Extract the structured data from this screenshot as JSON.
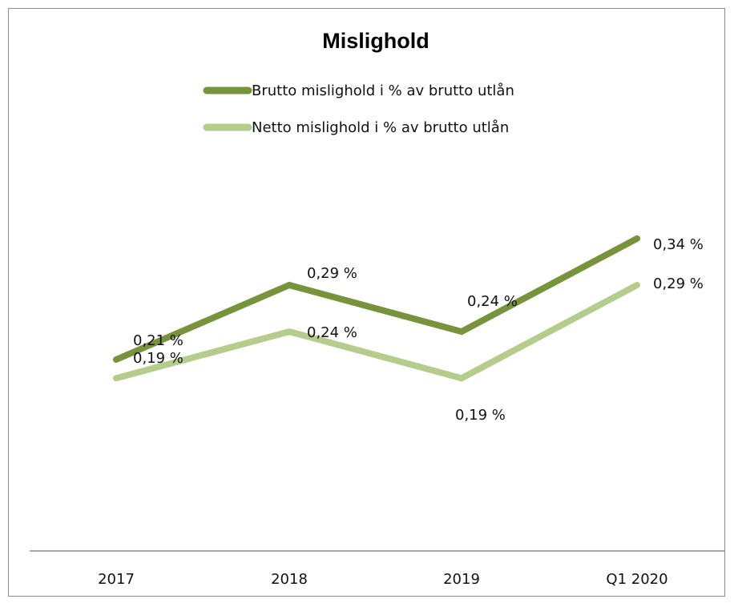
{
  "chart_data": {
    "type": "line",
    "title": "Mislighold",
    "categories": [
      "2017",
      "2018",
      "2019",
      "Q1 2020"
    ],
    "series": [
      {
        "name": "Brutto mislighold i % av brutto utlån",
        "values": [
          0.21,
          0.29,
          0.24,
          0.34
        ],
        "labels": [
          "0,21 %",
          "0,29 %",
          "0,24 %",
          "0,34 %"
        ],
        "color": "#77933c"
      },
      {
        "name": "Netto mislighold i % av brutto utlån",
        "values": [
          0.19,
          0.24,
          0.19,
          0.29
        ],
        "labels": [
          "0,19 %",
          "0,24 %",
          "0,19 %",
          "0,29 %"
        ],
        "color": "#b5cd8c"
      }
    ],
    "xlabel": "",
    "ylabel": "",
    "grid": false,
    "legend": "top"
  }
}
